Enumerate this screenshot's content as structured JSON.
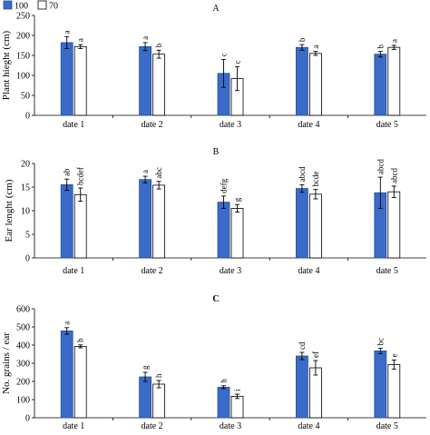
{
  "legend": {
    "items": [
      {
        "label": "100",
        "color": "#3a6bc9",
        "fill": "solid"
      },
      {
        "label": "70",
        "color": "#ffffff",
        "fill": "outline"
      }
    ]
  },
  "chart_data": [
    {
      "type": "bar",
      "panel": "A",
      "title": "A",
      "ylabel": "Plant hieght (cm)",
      "xlabel": "",
      "categories": [
        "date 1",
        "date 2",
        "date 3",
        "date 4",
        "date 5"
      ],
      "ylim": [
        0,
        250
      ],
      "yticks": [
        0,
        50,
        100,
        150,
        200,
        250
      ],
      "grid": false,
      "legend_position": "top-left",
      "series": [
        {
          "name": "100",
          "color": "#3a6bc9",
          "values": [
            182,
            172,
            105,
            170,
            153
          ],
          "errors": [
            15,
            10,
            35,
            7,
            7
          ],
          "letters": [
            "a",
            "a",
            "c",
            "b",
            "b"
          ]
        },
        {
          "name": "70",
          "color": "#ffffff",
          "values": [
            172,
            153,
            92,
            155,
            170
          ],
          "errors": [
            5,
            10,
            30,
            5,
            5
          ],
          "letters": [
            "a",
            "b",
            "c",
            "a",
            "a"
          ]
        }
      ]
    },
    {
      "type": "bar",
      "panel": "B",
      "title": "B",
      "ylabel": "Ear lenght (cm)",
      "xlabel": "",
      "categories": [
        "date 1",
        "date 2",
        "date 3",
        "date 4",
        "date 5"
      ],
      "ylim": [
        0,
        20
      ],
      "yticks": [
        0,
        5,
        10,
        15,
        20
      ],
      "grid": false,
      "series": [
        {
          "name": "100",
          "color": "#3a6bc9",
          "values": [
            15.5,
            16.6,
            11.8,
            14.7,
            13.8
          ],
          "errors": [
            1.2,
            0.7,
            1.3,
            0.8,
            3.3
          ],
          "letters": [
            "ab",
            "a",
            "defg",
            "abcd",
            "abcd"
          ]
        },
        {
          "name": "70",
          "color": "#ffffff",
          "values": [
            13.4,
            15.4,
            10.5,
            13.5,
            14.0
          ],
          "errors": [
            1.4,
            0.8,
            0.8,
            1.0,
            1.2
          ],
          "letters": [
            "bcdef",
            "abc",
            "g",
            "bcde",
            "abcd"
          ]
        }
      ]
    },
    {
      "type": "bar",
      "panel": "C",
      "title": "C",
      "ylabel": "No. grains / ear",
      "xlabel": "",
      "categories": [
        "date 1",
        "date 2",
        "date 3",
        "date 4",
        "date 5"
      ],
      "ylim": [
        0,
        600
      ],
      "yticks": [
        0,
        100,
        200,
        300,
        400,
        500,
        600
      ],
      "grid": false,
      "series": [
        {
          "name": "100",
          "color": "#3a6bc9",
          "values": [
            478,
            225,
            168,
            340,
            368
          ],
          "errors": [
            18,
            25,
            8,
            20,
            15
          ],
          "letters": [
            "a",
            "g",
            "h",
            "cd",
            "bc"
          ]
        },
        {
          "name": "70",
          "color": "#ffffff",
          "values": [
            393,
            185,
            118,
            275,
            293
          ],
          "errors": [
            8,
            20,
            12,
            40,
            25
          ],
          "letters": [
            "b",
            "h",
            "i",
            "ef",
            "e"
          ]
        }
      ]
    }
  ]
}
